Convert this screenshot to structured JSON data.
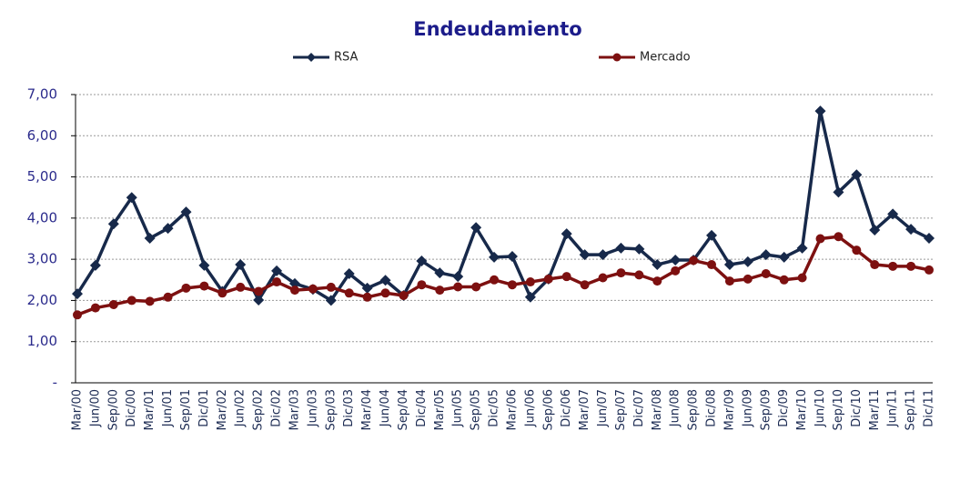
{
  "chart_data": {
    "type": "line",
    "title": "Endeudamiento",
    "categories": [
      "Mar/00",
      "Jun/00",
      "Sep/00",
      "Dic/00",
      "Mar/01",
      "Jun/01",
      "Sep/01",
      "Dic/01",
      "Mar/02",
      "Jun/02",
      "Sep/02",
      "Dic/02",
      "Mar/03",
      "Jun/03",
      "Sep/03",
      "Dic/03",
      "Mar/04",
      "Jun/04",
      "Sep/04",
      "Dic/04",
      "Mar/05",
      "Jun/05",
      "Sep/05",
      "Dic/05",
      "Mar/06",
      "Jun/06",
      "Sep/06",
      "Dic/06",
      "Mar/07",
      "Jun/07",
      "Sep/07",
      "Dic/07",
      "Mar/08",
      "Jun/08",
      "Sep/08",
      "Dic/08",
      "Mar/09",
      "Jun/09",
      "Sep/09",
      "Dic/09",
      "Mar/10",
      "Jun/10",
      "Sep/10",
      "Dic/10",
      "Mar/11",
      "Jun/11",
      "Sep/11",
      "Dic/11"
    ],
    "series": [
      {
        "name": "RSA",
        "color": "#17294a",
        "marker": "diamond",
        "values": [
          2.16,
          2.85,
          3.86,
          4.5,
          3.51,
          3.75,
          4.15,
          2.85,
          2.22,
          2.87,
          2.01,
          2.72,
          2.41,
          2.27,
          2.0,
          2.65,
          2.3,
          2.49,
          2.12,
          2.96,
          2.67,
          2.58,
          3.77,
          3.05,
          3.07,
          2.08,
          2.52,
          3.62,
          3.11,
          3.11,
          3.27,
          3.25,
          2.87,
          2.98,
          2.98,
          3.58,
          2.87,
          2.94,
          3.11,
          3.05,
          3.27,
          6.6,
          4.63,
          5.05,
          3.71,
          4.1,
          3.73,
          3.51
        ]
      },
      {
        "name": "Mercado",
        "color": "#7d1010",
        "marker": "circle",
        "values": [
          1.65,
          1.82,
          1.9,
          2.0,
          1.98,
          2.08,
          2.3,
          2.35,
          2.18,
          2.32,
          2.22,
          2.45,
          2.25,
          2.28,
          2.32,
          2.18,
          2.08,
          2.18,
          2.12,
          2.38,
          2.25,
          2.33,
          2.33,
          2.5,
          2.38,
          2.45,
          2.52,
          2.58,
          2.38,
          2.55,
          2.67,
          2.62,
          2.47,
          2.72,
          2.97,
          2.87,
          2.47,
          2.52,
          2.65,
          2.5,
          2.55,
          3.5,
          3.55,
          3.22,
          2.87,
          2.83,
          2.83,
          2.74
        ]
      }
    ],
    "ylim": [
      0,
      7
    ],
    "yticks": [
      {
        "value": 0,
        "label": "-"
      },
      {
        "value": 1,
        "label": "1,00"
      },
      {
        "value": 2,
        "label": "2,00"
      },
      {
        "value": 3,
        "label": "3,00"
      },
      {
        "value": 4,
        "label": "4,00"
      },
      {
        "value": 5,
        "label": "5,00"
      },
      {
        "value": 6,
        "label": "6,00"
      },
      {
        "value": 7,
        "label": "7,00"
      }
    ],
    "grid": true
  }
}
